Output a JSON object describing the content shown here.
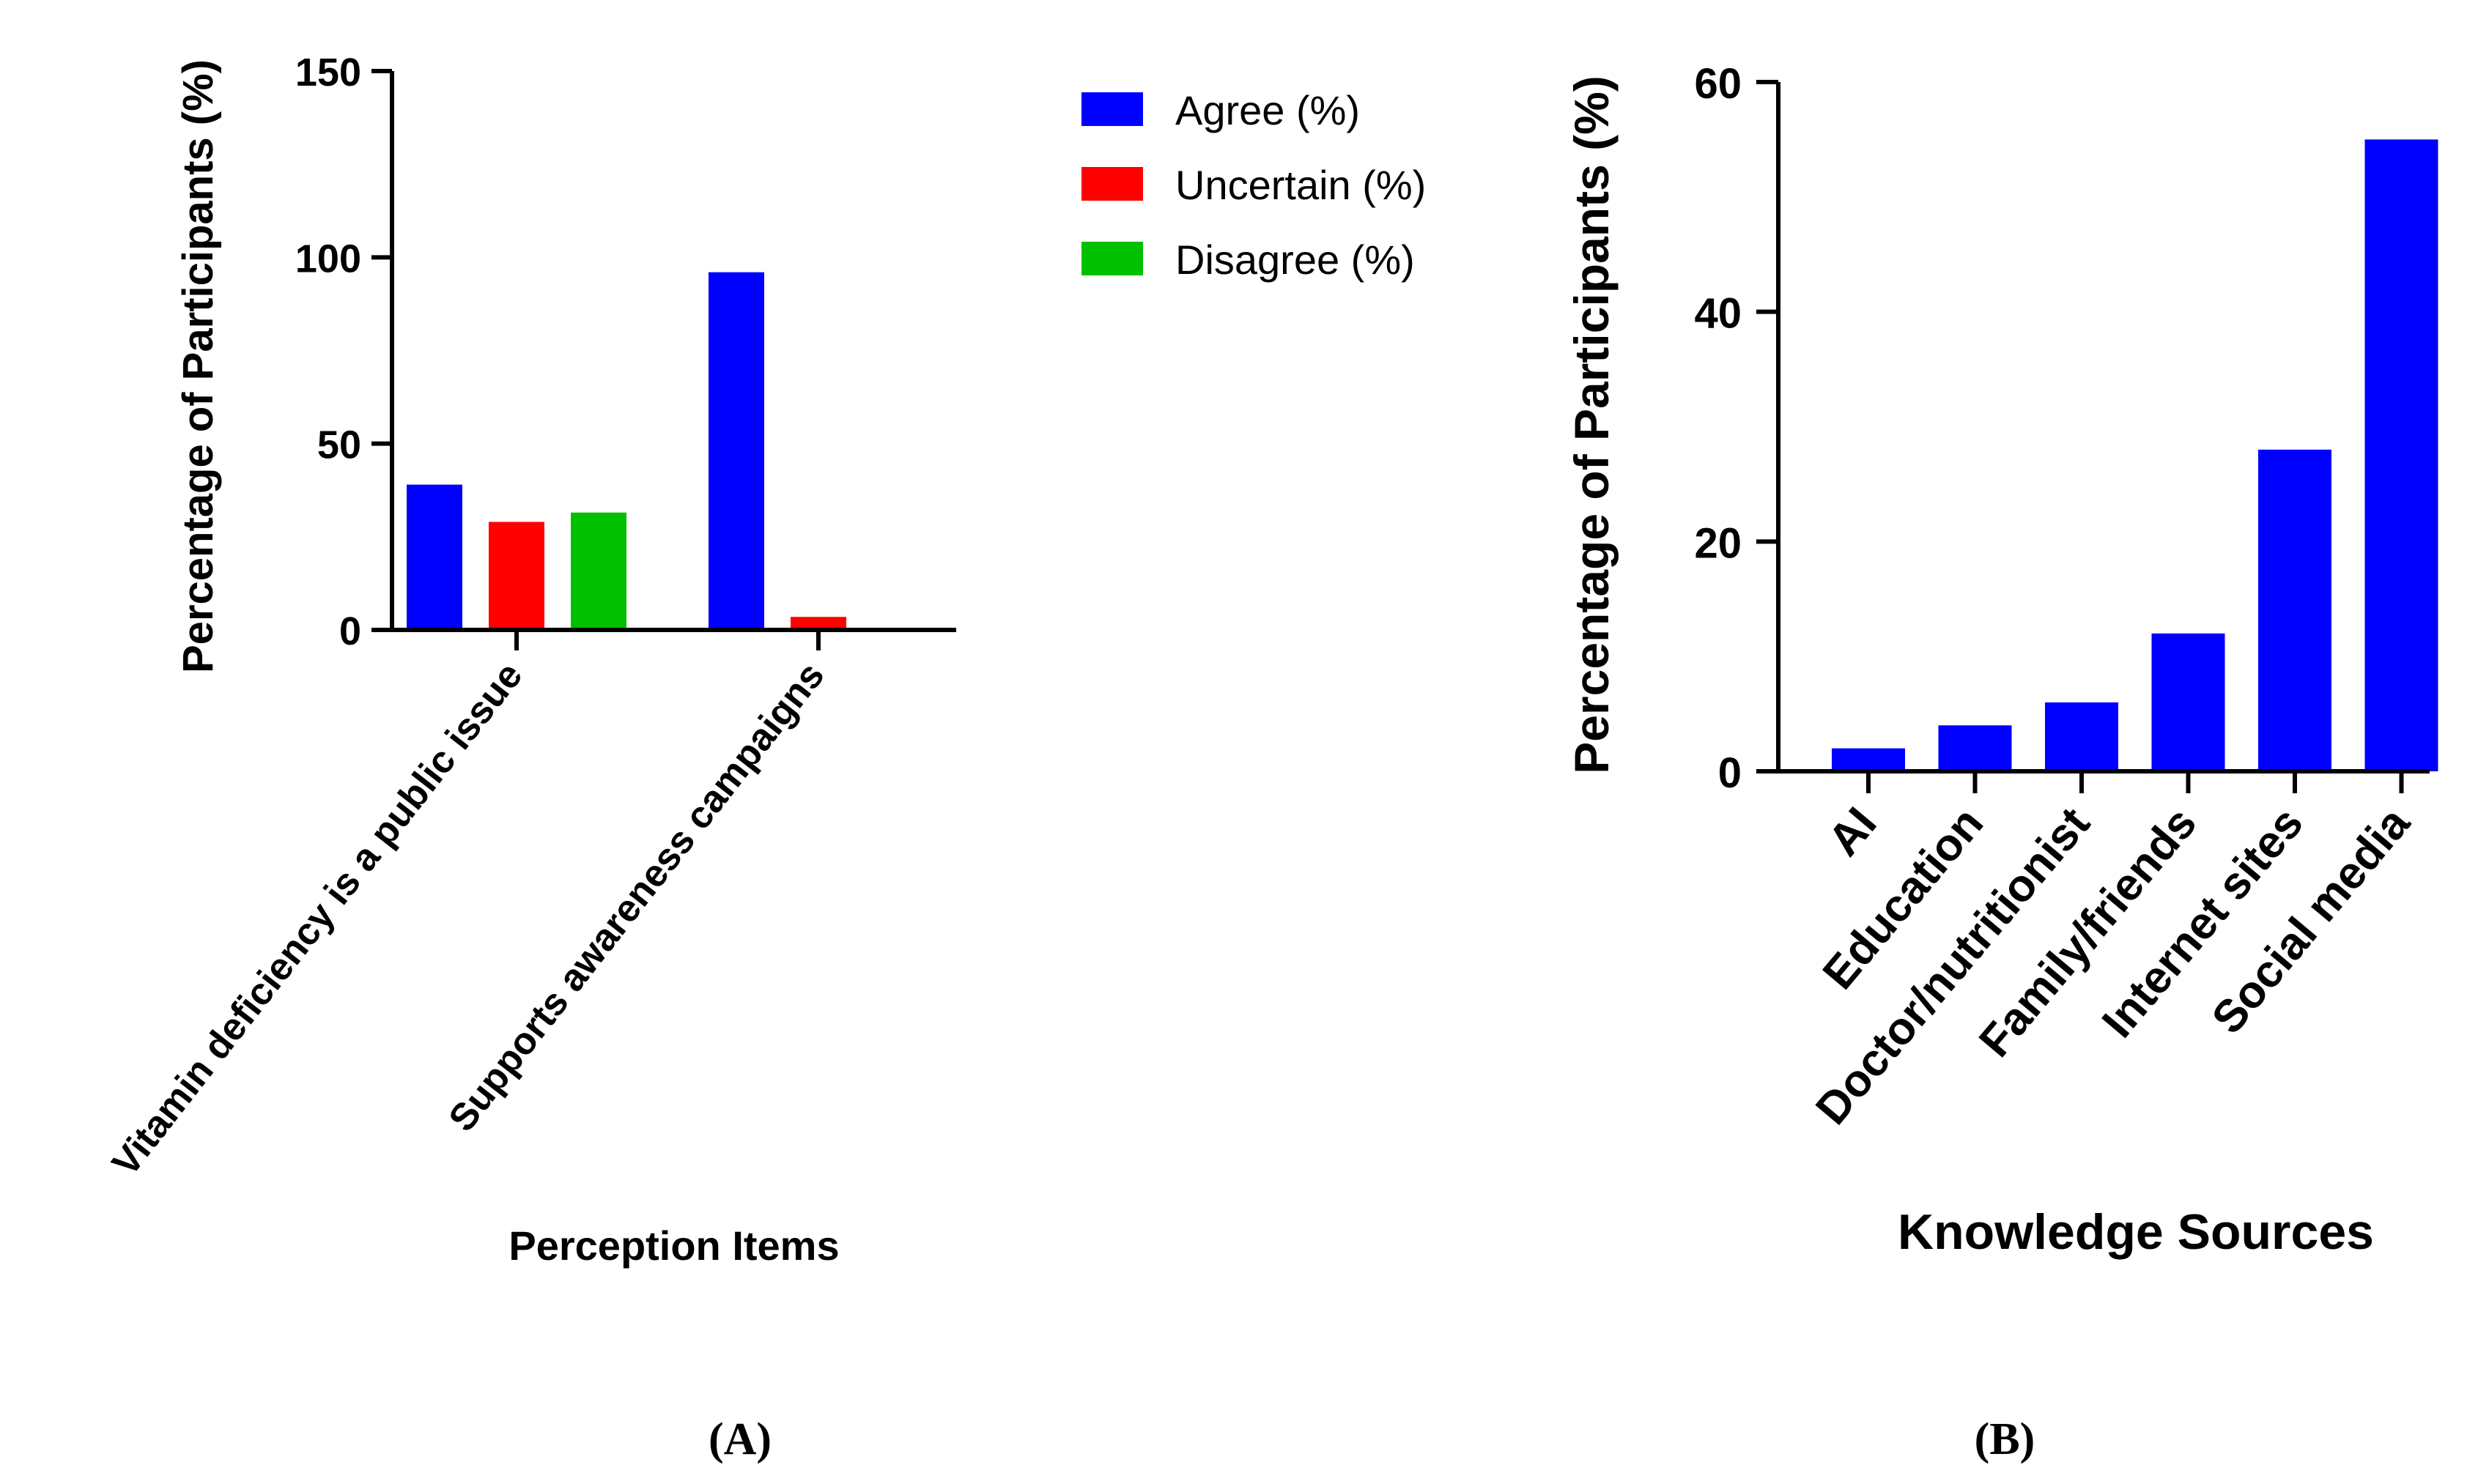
{
  "chart_data": [
    {
      "panel_label": "(A)",
      "type": "bar",
      "categories": [
        "Vitamin deficiency is a public issue",
        "Supports awareness campaigns"
      ],
      "series": [
        {
          "name": "Agree (%)",
          "color": "#0000ff",
          "values": [
            39,
            96
          ]
        },
        {
          "name": "Uncertain (%)",
          "color": "#ff0000",
          "values": [
            29,
            3.5
          ]
        },
        {
          "name": "Disagree (%)",
          "color": "#00c000",
          "values": [
            31.5,
            0
          ]
        }
      ],
      "xlabel": "Perception Items",
      "ylabel": "Percentage of Participants (%)",
      "ylim": [
        0,
        150
      ],
      "yticks": [
        0,
        50,
        100,
        150
      ],
      "legend": "top-right",
      "grid": false
    },
    {
      "panel_label": "(B)",
      "type": "bar",
      "categories": [
        "AI",
        "Education",
        "Doctor/nutritionist",
        "Family/friends",
        "Internet sites",
        "Social media"
      ],
      "series": [
        {
          "name": "Percentage",
          "color": "#0000ff",
          "values": [
            2,
            4,
            6,
            12,
            28,
            55
          ]
        }
      ],
      "xlabel": "Knowledge Sources",
      "ylabel": "Percentage of Participants (%)",
      "ylim": [
        0,
        60
      ],
      "yticks": [
        0,
        20,
        40,
        60
      ],
      "grid": false
    }
  ]
}
